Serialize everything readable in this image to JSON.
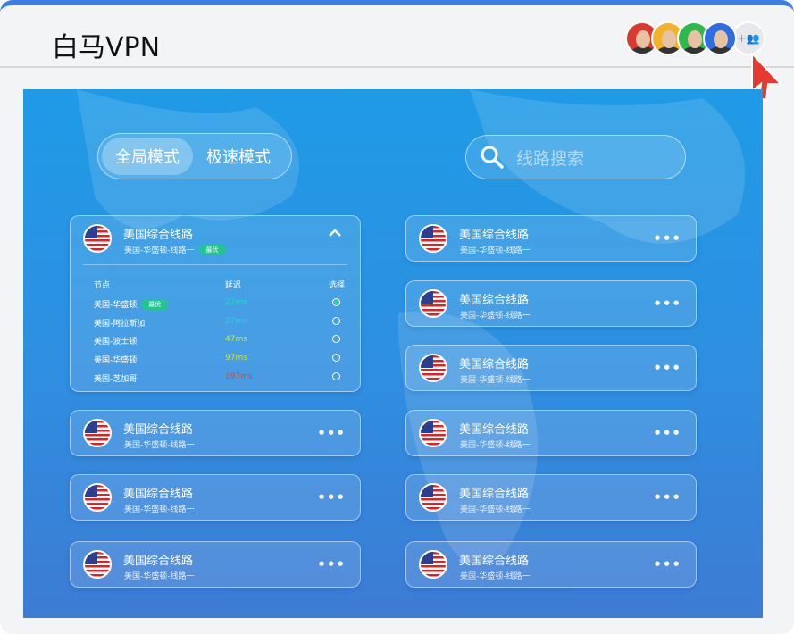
{
  "header": {
    "title": "白马VPN",
    "avatars": [
      {
        "color": "#d93a2f"
      },
      {
        "color": "#f2b22b"
      },
      {
        "color": "#2fb84c"
      },
      {
        "color": "#2d6fe0"
      }
    ],
    "add_icon": "add-group-icon"
  },
  "modes": {
    "global": "全局模式",
    "fast": "极速模式",
    "active": "global"
  },
  "search": {
    "placeholder": "线路搜索"
  },
  "expanded": {
    "name": "美国综合线路",
    "sub": "美国-华盛顿-线路一",
    "badge": "最优",
    "headers": {
      "node": "节点",
      "latency": "延迟",
      "select": "选择"
    },
    "nodes": [
      {
        "name": "美国-华盛顿",
        "badge": "最优",
        "latency": "22ms",
        "color": "#1fd8c8",
        "selected": true
      },
      {
        "name": "美国-阿拉斯加",
        "latency": "27ms",
        "color": "#1fd8c8",
        "selected": false
      },
      {
        "name": "美国-波士顿",
        "latency": "47ms",
        "color": "#c8e62a",
        "selected": false
      },
      {
        "name": "美国-华盛顿",
        "latency": "97ms",
        "color": "#c8e62a",
        "selected": false
      },
      {
        "name": "美国-芝加哥",
        "latency": "197ms",
        "color": "#e0443a",
        "selected": false
      }
    ]
  },
  "lines": [
    {
      "name": "美国综合线路",
      "sub": "美国-华盛顿-线路一"
    },
    {
      "name": "美国综合线路",
      "sub": "美国-华盛顿-线路一"
    },
    {
      "name": "美国综合线路",
      "sub": "美国-华盛顿-线路一"
    },
    {
      "name": "美国综合线路",
      "sub": "美国-华盛顿-线路一"
    },
    {
      "name": "美国综合线路",
      "sub": "美国-华盛顿-线路一"
    },
    {
      "name": "美国综合线路",
      "sub": "美国-华盛顿-线路一"
    },
    {
      "name": "美国综合线路",
      "sub": "美国-华盛顿-线路一"
    },
    {
      "name": "美国综合线路",
      "sub": "美国-华盛顿-线路一"
    },
    {
      "name": "美国综合线路",
      "sub": "美国-华盛顿-线路一"
    }
  ]
}
